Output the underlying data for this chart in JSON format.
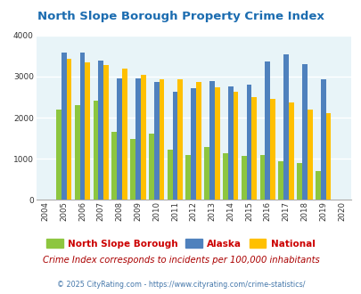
{
  "title": "North Slope Borough Property Crime Index",
  "years": [
    "2004",
    "2005",
    "2006",
    "2007",
    "2008",
    "2009",
    "2010",
    "2011",
    "2012",
    "2013",
    "2014",
    "2015",
    "2016",
    "2017",
    "2018",
    "2019",
    "2020"
  ],
  "nsb": [
    null,
    2190,
    2300,
    2420,
    1660,
    1490,
    1620,
    1230,
    1100,
    1290,
    1130,
    1060,
    1090,
    950,
    900,
    700,
    null
  ],
  "alaska": [
    null,
    3590,
    3590,
    3380,
    2950,
    2950,
    2870,
    2630,
    2720,
    2890,
    2760,
    2810,
    3370,
    3540,
    3300,
    2930,
    null
  ],
  "national": [
    null,
    3420,
    3350,
    3270,
    3200,
    3030,
    2940,
    2920,
    2870,
    2730,
    2620,
    2500,
    2460,
    2360,
    2200,
    2100,
    null
  ],
  "nsb_color": "#8DC63F",
  "alaska_color": "#4F81BD",
  "national_color": "#FFC000",
  "bg_color": "#E8F4F8",
  "plot_bg": "#E8F4F8",
  "ylim": [
    0,
    4000
  ],
  "yticks": [
    0,
    1000,
    2000,
    3000,
    4000
  ],
  "subtitle": "Crime Index corresponds to incidents per 100,000 inhabitants",
  "footer": "© 2025 CityRating.com - https://www.cityrating.com/crime-statistics/",
  "title_color": "#1B6CB0",
  "legend_label_color": "#CC0000",
  "subtitle_color": "#AA0000",
  "footer_color": "#4477AA",
  "bar_width": 0.28
}
